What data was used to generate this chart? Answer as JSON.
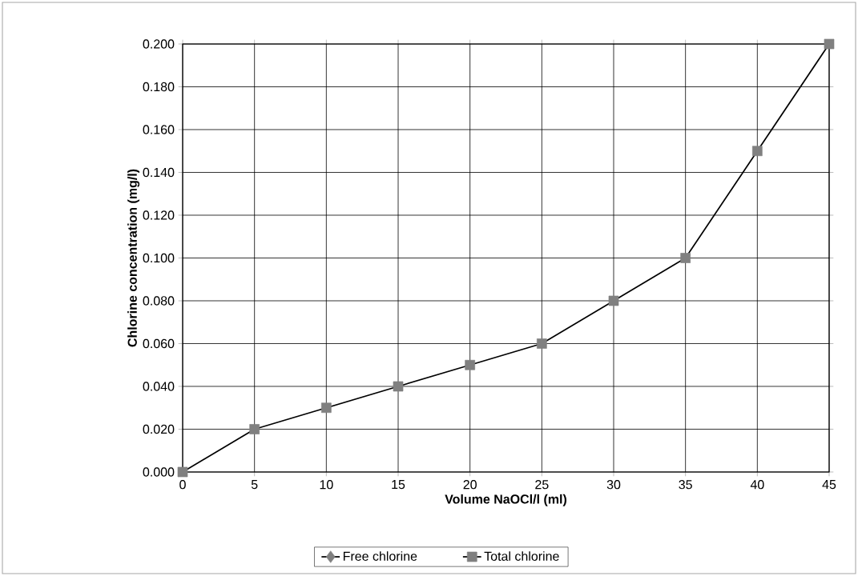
{
  "chart_data": {
    "type": "line",
    "xlabel": "Volume NaOCl/l (ml)",
    "ylabel": "Chlorine concentration (mg/l)",
    "x": [
      0,
      5,
      10,
      15,
      20,
      25,
      30,
      35,
      40,
      45
    ],
    "series": [
      {
        "name": "Free chlorine",
        "color": "#808080",
        "marker": "diamond",
        "values": [
          null,
          null,
          null,
          null,
          null,
          null,
          null,
          null,
          null,
          null
        ]
      },
      {
        "name": "Total chlorine",
        "color": "#808080",
        "marker": "square",
        "values": [
          0.0,
          0.02,
          0.03,
          0.04,
          0.05,
          0.06,
          0.08,
          0.1,
          0.15,
          0.2
        ]
      }
    ],
    "xlim": [
      0,
      45
    ],
    "xticks": [
      0,
      5,
      10,
      15,
      20,
      25,
      30,
      35,
      40,
      45
    ],
    "ylim": [
      0,
      0.2
    ],
    "yticks": [
      {
        "value": 0,
        "label": "0.000"
      },
      {
        "value": 0.02,
        "label": "0.020"
      },
      {
        "value": 0.04,
        "label": "0.040"
      },
      {
        "value": 0.06,
        "label": "0.060"
      },
      {
        "value": 0.08,
        "label": "0.080"
      },
      {
        "value": 0.1,
        "label": "0.100"
      },
      {
        "value": 0.12,
        "label": "0.120"
      },
      {
        "value": 0.14,
        "label": "0.140"
      },
      {
        "value": 0.16,
        "label": "0.160"
      },
      {
        "value": 0.18,
        "label": "0.180"
      },
      {
        "value": 0.2,
        "label": "0.200"
      }
    ],
    "grid": true,
    "legend": "bottom",
    "line_style": "solid"
  }
}
